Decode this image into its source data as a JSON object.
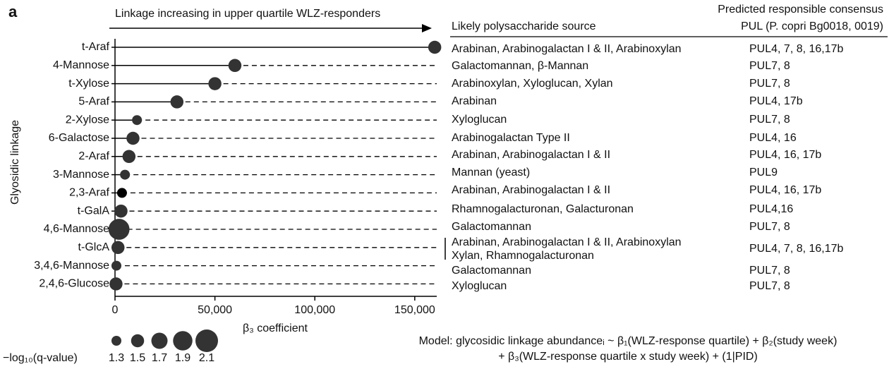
{
  "panel_label": "a",
  "chart_data": {
    "type": "lollipop",
    "arrow_label": "Linkage increasing in upper quartile WLZ-responders",
    "x_label": "β₃ coefficient",
    "y_label": "Glyosidic linkage",
    "categories": [
      "t-Araf",
      "4-Mannose",
      "t-Xylose",
      "5-Araf",
      "2-Xylose",
      "6-Galactose",
      "2-Araf",
      "3-Mannose",
      "2,3-Araf",
      "t-GalA",
      "4,6-Mannose",
      "t-GlcA",
      "3,4,6-Mannose",
      "2,4,6-Glucose"
    ],
    "values": [
      160000,
      60000,
      50000,
      31000,
      11000,
      9000,
      7000,
      5000,
      3500,
      3000,
      2000,
      1500,
      700,
      500
    ],
    "sizes": [
      1.5,
      1.5,
      1.5,
      1.5,
      1.3,
      1.5,
      1.5,
      1.3,
      1.3,
      1.5,
      2.0,
      1.5,
      1.3,
      1.5
    ],
    "colors": [
      "#333333",
      "#333333",
      "#333333",
      "#333333",
      "#333333",
      "#333333",
      "#333333",
      "#333333",
      "#000000",
      "#333333",
      "#333333",
      "#333333",
      "#333333",
      "#333333"
    ],
    "xlim": [
      0,
      161000
    ],
    "xticks": [
      0,
      {
        "value": 50000,
        "label": "50,000"
      },
      {
        "value": 100000,
        "label": "100,000"
      },
      {
        "value": 150000,
        "label": "150,000"
      }
    ],
    "size_legend_title": "−log₁₀(q-value)",
    "size_legend": [
      1.3,
      1.5,
      1.7,
      1.9,
      2.1
    ]
  },
  "table": {
    "headers": [
      "Likely polysaccharide source",
      [
        "Predicted responsible consensus",
        "PUL (P. copri Bg0018, 0019)"
      ]
    ],
    "rows": [
      [
        [
          "Arabinan, Arabinogalactan I & II, Arabinoxylan"
        ],
        "PUL4, 7, 8, 16,17b"
      ],
      [
        [
          "Galactomannan, β-Mannan"
        ],
        "PUL7, 8"
      ],
      [
        [
          "Arabinoxylan, Xyloglucan, Xylan"
        ],
        "PUL7, 8"
      ],
      [
        [
          "Arabinan"
        ],
        "PUL4, 17b"
      ],
      [
        [
          "Xyloglucan"
        ],
        "PUL7, 8"
      ],
      [
        [
          "Arabinogalactan Type II"
        ],
        "PUL4, 16"
      ],
      [
        [
          "Arabinan, Arabinogalactan I & II"
        ],
        "PUL4, 16, 17b"
      ],
      [
        [
          "Mannan (yeast)"
        ],
        "PUL9"
      ],
      [
        [
          "Arabinan, Arabinogalactan I & II"
        ],
        "PUL4, 16, 17b"
      ],
      [
        [
          "Rhamnogalacturonan, Galacturonan"
        ],
        "PUL4,16"
      ],
      [
        [
          "Galactomannan"
        ],
        "PUL7, 8"
      ],
      [
        [
          "Arabinan, Arabinogalactan I & II, Arabinoxylan",
          "Xylan, Rhamnogalacturonan"
        ],
        "PUL4, 7, 8, 16,17b"
      ],
      [
        [
          "Galactomannan"
        ],
        "PUL7, 8"
      ],
      [
        [
          "Xyloglucan"
        ],
        "PUL7, 8"
      ]
    ]
  },
  "model": [
    "Model: glycosidic linkage abundanceᵢ ~ β₁(WLZ-response quartile) + β₂(study week)",
    "+ β₃(WLZ-response quartile x study week) + (1|PID)"
  ]
}
